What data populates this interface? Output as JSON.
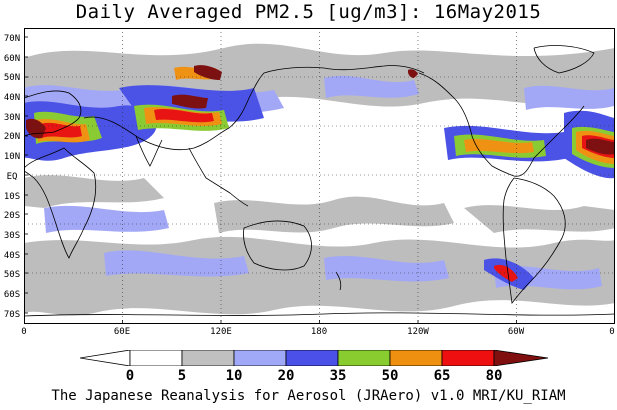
{
  "title": "Daily Averaged PM2.5 [ug/m3]: 16May2015",
  "footer": "The Japanese Reanalysis for Aerosol (JRAero) v1.0 MRI/KU_RIAM",
  "lat_labels": [
    "70N",
    "60N",
    "50N",
    "40N",
    "30N",
    "20N",
    "10N",
    "EQ",
    "10S",
    "20S",
    "30S",
    "40S",
    "50S",
    "60S",
    "70S"
  ],
  "lon_labels": [
    "0",
    "60E",
    "120E",
    "180",
    "120W",
    "60W",
    "0"
  ],
  "colorbar": {
    "ticks": [
      "0",
      "5",
      "10",
      "20",
      "35",
      "50",
      "65",
      "80"
    ],
    "colors": [
      "#ffffff",
      "#c0c0c0",
      "#a0a8f8",
      "#4a50e8",
      "#88cc30",
      "#f09010",
      "#ee1010",
      "#801010"
    ]
  },
  "map_colors": {
    "ocean": "#ffffff",
    "grey": "#bdbdbd",
    "light_blue": "#a3a8f6",
    "blue": "#4b52e6",
    "green": "#8acb33",
    "orange": "#ef9214",
    "red": "#e81414",
    "dark_red": "#7d1010",
    "coast": "#000000"
  }
}
